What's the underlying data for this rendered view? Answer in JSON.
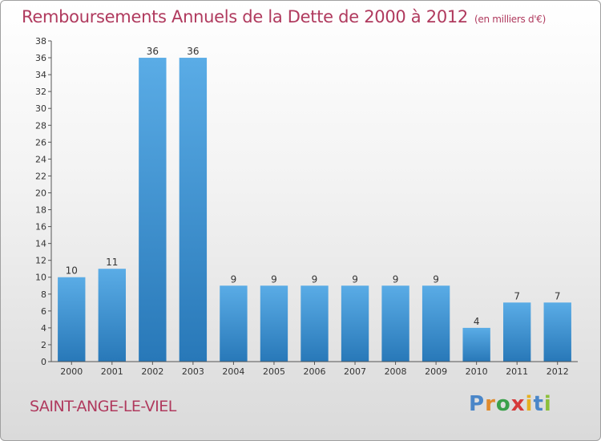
{
  "title": "Remboursements Annuels de la Dette de 2000 à 2012",
  "unit": "(en milliers d'€)",
  "commune": "SAINT-ANGE-LE-VIEL",
  "logo": [
    "P",
    "r",
    "o",
    "x",
    "i",
    "t",
    "i"
  ],
  "colors": {
    "title": "#b03a5e",
    "bar_light": "#5aace6",
    "bar_dark": "#2878b8"
  },
  "chart_data": {
    "type": "bar",
    "title": "Remboursements Annuels de la Dette de 2000 à 2012",
    "subtitle": "(en milliers d'€)",
    "categories": [
      "2000",
      "2001",
      "2002",
      "2003",
      "2004",
      "2005",
      "2006",
      "2007",
      "2008",
      "2009",
      "2010",
      "2011",
      "2012"
    ],
    "values": [
      10,
      11,
      36,
      36,
      9,
      9,
      9,
      9,
      9,
      9,
      4,
      7,
      7
    ],
    "xlabel": "",
    "ylabel": "",
    "ylim": [
      0,
      38
    ],
    "yticks": [
      0,
      2,
      4,
      6,
      8,
      10,
      12,
      14,
      16,
      18,
      20,
      22,
      24,
      26,
      28,
      30,
      32,
      34,
      36,
      38
    ],
    "grid": false,
    "legend": "none"
  }
}
